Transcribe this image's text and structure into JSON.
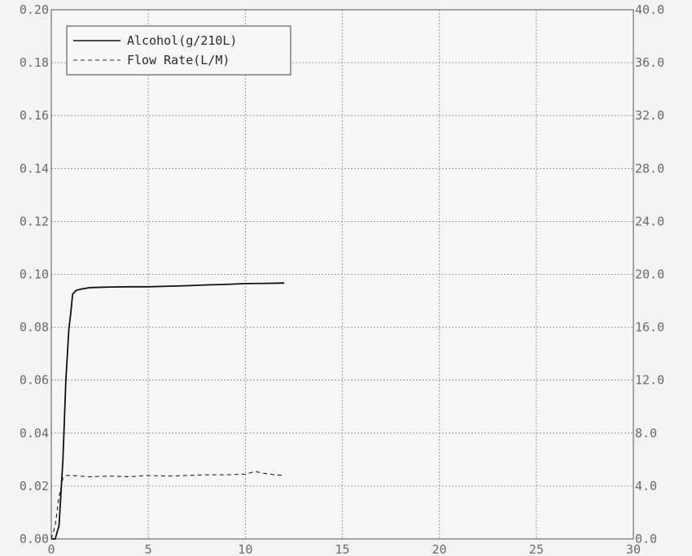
{
  "chart_data": {
    "type": "line",
    "title": "",
    "xlabel": "",
    "ylabel": "",
    "y2label": "",
    "xlim": [
      0,
      30
    ],
    "ylim": [
      0,
      0.2
    ],
    "y2lim": [
      0,
      40
    ],
    "x_ticks": [
      "0",
      "5",
      "10",
      "15",
      "20",
      "25",
      "30"
    ],
    "y_ticks": [
      "0.00",
      "0.02",
      "0.04",
      "0.06",
      "0.08",
      "0.10",
      "0.12",
      "0.14",
      "0.16",
      "0.18",
      "0.20"
    ],
    "y2_ticks": [
      "0.0",
      "4.0",
      "8.0",
      "12.0",
      "16.0",
      "20.0",
      "24.0",
      "28.0",
      "32.0",
      "36.0",
      "40.0"
    ],
    "grid": true,
    "legend_position": "top-left",
    "series": [
      {
        "name": "Alcohol(g/210L)",
        "axis": "left",
        "style": "solid",
        "color": "#111111",
        "x": [
          0,
          0.2,
          0.4,
          0.6,
          0.75,
          0.9,
          1.0,
          1.1,
          1.3,
          1.6,
          2.0,
          3.0,
          4.0,
          5.0,
          6.0,
          7.0,
          8.0,
          9.0,
          10.0,
          11.0,
          12.0
        ],
        "y": [
          0.0,
          0.0,
          0.005,
          0.03,
          0.06,
          0.079,
          0.085,
          0.0925,
          0.094,
          0.0945,
          0.095,
          0.0952,
          0.0953,
          0.0953,
          0.0955,
          0.0957,
          0.096,
          0.0962,
          0.0965,
          0.0966,
          0.0967
        ]
      },
      {
        "name": "Flow Rate(L/M)",
        "axis": "right",
        "style": "dashed",
        "color": "#222222",
        "x": [
          0,
          0.2,
          0.4,
          0.6,
          0.8,
          1.0,
          2.0,
          3.0,
          4.0,
          5.0,
          6.0,
          7.0,
          8.0,
          9.0,
          10.0,
          10.5,
          11.0,
          11.5,
          12.0
        ],
        "y": [
          0.0,
          1.0,
          3.2,
          4.6,
          4.8,
          4.8,
          4.7,
          4.75,
          4.7,
          4.8,
          4.75,
          4.8,
          4.85,
          4.85,
          4.9,
          5.1,
          4.95,
          4.85,
          4.8
        ]
      }
    ]
  }
}
